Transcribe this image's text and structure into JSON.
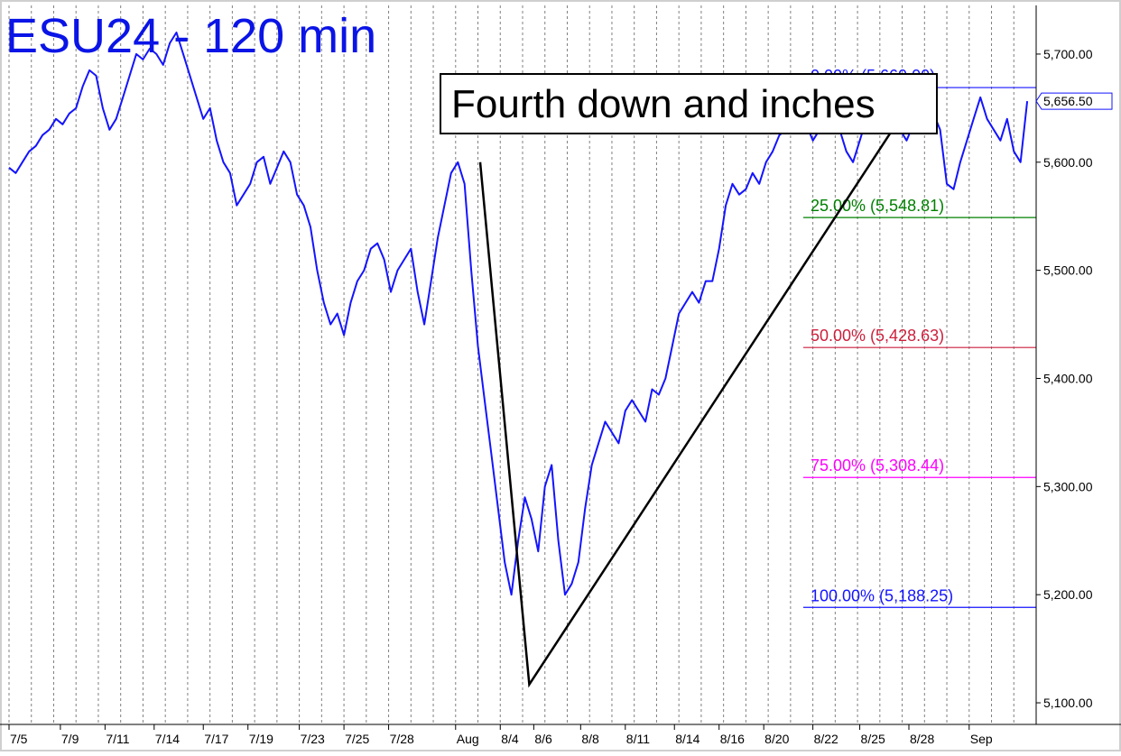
{
  "chart_data": {
    "type": "line",
    "title": "ESU24 - 120 min",
    "annotation": "Fourth down and inches",
    "colors": {
      "price": "#1414ff",
      "trend": "#000000",
      "axis": "#000000"
    },
    "x_ticks": [
      "7/5",
      "7/9",
      "7/11",
      "7/14",
      "7/17",
      "7/19",
      "7/23",
      "7/25",
      "7/28",
      "Aug",
      "8/4",
      "8/6",
      "8/8",
      "8/11",
      "8/14",
      "8/16",
      "8/20",
      "8/22",
      "8/25",
      "8/28",
      "Sep"
    ],
    "y_ticks": [
      {
        "value": 5100,
        "label": "5,100.00"
      },
      {
        "value": 5200,
        "label": "5,200.00"
      },
      {
        "value": 5300,
        "label": "5,300.00"
      },
      {
        "value": 5400,
        "label": "5,400.00"
      },
      {
        "value": 5500,
        "label": "5,500.00"
      },
      {
        "value": 5600,
        "label": "5,600.00"
      },
      {
        "value": 5700,
        "label": "5,700.00"
      }
    ],
    "ylim": [
      5080,
      5745
    ],
    "last_price": {
      "value": 5656.5,
      "label": "5,656.50"
    },
    "fib_levels": [
      {
        "label": "0.00% (5,669.00)",
        "value": 5669.0,
        "color": "#1414ff"
      },
      {
        "label": "25.00% (5,548.81)",
        "value": 5548.81,
        "color": "#008000"
      },
      {
        "label": "50.00% (5,428.63)",
        "value": 5428.63,
        "color": "#cc1f3c"
      },
      {
        "label": "75.00% (5,308.44)",
        "value": 5308.44,
        "color": "#ff00ff"
      },
      {
        "label": "100.00% (5,188.25)",
        "value": 5188.25,
        "color": "#1414ff"
      }
    ],
    "series": [
      {
        "type": "price",
        "points": [
          [
            0,
            5595
          ],
          [
            0.3,
            5590
          ],
          [
            0.6,
            5600
          ],
          [
            0.9,
            5610
          ],
          [
            1.2,
            5615
          ],
          [
            1.5,
            5625
          ],
          [
            1.8,
            5630
          ],
          [
            2.1,
            5640
          ],
          [
            2.4,
            5635
          ],
          [
            2.7,
            5645
          ],
          [
            3.0,
            5650
          ],
          [
            3.3,
            5670
          ],
          [
            3.6,
            5685
          ],
          [
            3.9,
            5680
          ],
          [
            4.2,
            5650
          ],
          [
            4.5,
            5630
          ],
          [
            4.8,
            5640
          ],
          [
            5.1,
            5660
          ],
          [
            5.4,
            5680
          ],
          [
            5.7,
            5700
          ],
          [
            6.0,
            5695
          ],
          [
            6.3,
            5705
          ],
          [
            6.6,
            5700
          ],
          [
            6.9,
            5690
          ],
          [
            7.2,
            5710
          ],
          [
            7.5,
            5720
          ],
          [
            7.8,
            5700
          ],
          [
            8.1,
            5680
          ],
          [
            8.4,
            5660
          ],
          [
            8.7,
            5640
          ],
          [
            9.0,
            5650
          ],
          [
            9.3,
            5620
          ],
          [
            9.6,
            5600
          ],
          [
            9.9,
            5590
          ],
          [
            10.2,
            5560
          ],
          [
            10.5,
            5570
          ],
          [
            10.8,
            5580
          ],
          [
            11.1,
            5600
          ],
          [
            11.4,
            5605
          ],
          [
            11.7,
            5580
          ],
          [
            12.0,
            5595
          ],
          [
            12.3,
            5610
          ],
          [
            12.6,
            5600
          ],
          [
            12.9,
            5570
          ],
          [
            13.2,
            5560
          ],
          [
            13.5,
            5540
          ],
          [
            13.8,
            5500
          ],
          [
            14.1,
            5470
          ],
          [
            14.4,
            5450
          ],
          [
            14.7,
            5460
          ],
          [
            15.0,
            5440
          ],
          [
            15.3,
            5470
          ],
          [
            15.6,
            5490
          ],
          [
            15.9,
            5500
          ],
          [
            16.2,
            5520
          ],
          [
            16.5,
            5525
          ],
          [
            16.8,
            5510
          ],
          [
            17.1,
            5480
          ],
          [
            17.4,
            5500
          ],
          [
            17.7,
            5510
          ],
          [
            18.0,
            5520
          ],
          [
            18.3,
            5480
          ],
          [
            18.6,
            5450
          ],
          [
            18.9,
            5490
          ],
          [
            19.2,
            5530
          ],
          [
            19.5,
            5560
          ],
          [
            19.8,
            5590
          ],
          [
            20.1,
            5600
          ],
          [
            20.4,
            5580
          ],
          [
            20.7,
            5500
          ],
          [
            21.0,
            5430
          ],
          [
            21.3,
            5380
          ],
          [
            21.6,
            5330
          ],
          [
            21.9,
            5280
          ],
          [
            22.2,
            5230
          ],
          [
            22.5,
            5200
          ],
          [
            22.8,
            5250
          ],
          [
            23.1,
            5290
          ],
          [
            23.4,
            5270
          ],
          [
            23.7,
            5240
          ],
          [
            24.0,
            5300
          ],
          [
            24.3,
            5320
          ],
          [
            24.6,
            5250
          ],
          [
            24.9,
            5200
          ],
          [
            25.2,
            5210
          ],
          [
            25.5,
            5230
          ],
          [
            25.8,
            5280
          ],
          [
            26.1,
            5320
          ],
          [
            26.4,
            5340
          ],
          [
            26.7,
            5360
          ],
          [
            27.0,
            5350
          ],
          [
            27.3,
            5340
          ],
          [
            27.6,
            5370
          ],
          [
            27.9,
            5380
          ],
          [
            28.2,
            5370
          ],
          [
            28.5,
            5360
          ],
          [
            28.8,
            5390
          ],
          [
            29.1,
            5385
          ],
          [
            29.4,
            5400
          ],
          [
            29.7,
            5430
          ],
          [
            30.0,
            5460
          ],
          [
            30.3,
            5470
          ],
          [
            30.6,
            5480
          ],
          [
            30.9,
            5470
          ],
          [
            31.2,
            5490
          ],
          [
            31.5,
            5490
          ],
          [
            31.8,
            5520
          ],
          [
            32.1,
            5560
          ],
          [
            32.4,
            5580
          ],
          [
            32.7,
            5570
          ],
          [
            33.0,
            5575
          ],
          [
            33.3,
            5590
          ],
          [
            33.6,
            5580
          ],
          [
            33.9,
            5600
          ],
          [
            34.2,
            5610
          ],
          [
            34.5,
            5625
          ],
          [
            34.8,
            5630
          ],
          [
            35.1,
            5640
          ],
          [
            35.4,
            5630
          ],
          [
            35.7,
            5635
          ],
          [
            36.0,
            5620
          ],
          [
            36.3,
            5630
          ],
          [
            36.6,
            5640
          ],
          [
            36.9,
            5650
          ],
          [
            37.2,
            5630
          ],
          [
            37.5,
            5610
          ],
          [
            37.8,
            5600
          ],
          [
            38.1,
            5620
          ],
          [
            38.4,
            5640
          ],
          [
            38.7,
            5655
          ],
          [
            39.0,
            5665
          ],
          [
            39.3,
            5650
          ],
          [
            39.6,
            5640
          ],
          [
            39.9,
            5630
          ],
          [
            40.2,
            5620
          ],
          [
            40.5,
            5635
          ],
          [
            40.8,
            5640
          ],
          [
            41.1,
            5630
          ],
          [
            41.4,
            5645
          ],
          [
            41.7,
            5630
          ],
          [
            42.0,
            5580
          ],
          [
            42.3,
            5575
          ],
          [
            42.6,
            5600
          ],
          [
            42.9,
            5620
          ],
          [
            43.2,
            5640
          ],
          [
            43.5,
            5660
          ],
          [
            43.8,
            5640
          ],
          [
            44.1,
            5630
          ],
          [
            44.4,
            5620
          ],
          [
            44.7,
            5640
          ],
          [
            45.0,
            5610
          ],
          [
            45.3,
            5600
          ],
          [
            45.6,
            5656.5
          ]
        ]
      },
      {
        "type": "trendline",
        "points": [
          [
            21.1,
            5600
          ],
          [
            23.3,
            5117
          ],
          [
            40.8,
            5669
          ]
        ]
      }
    ]
  }
}
